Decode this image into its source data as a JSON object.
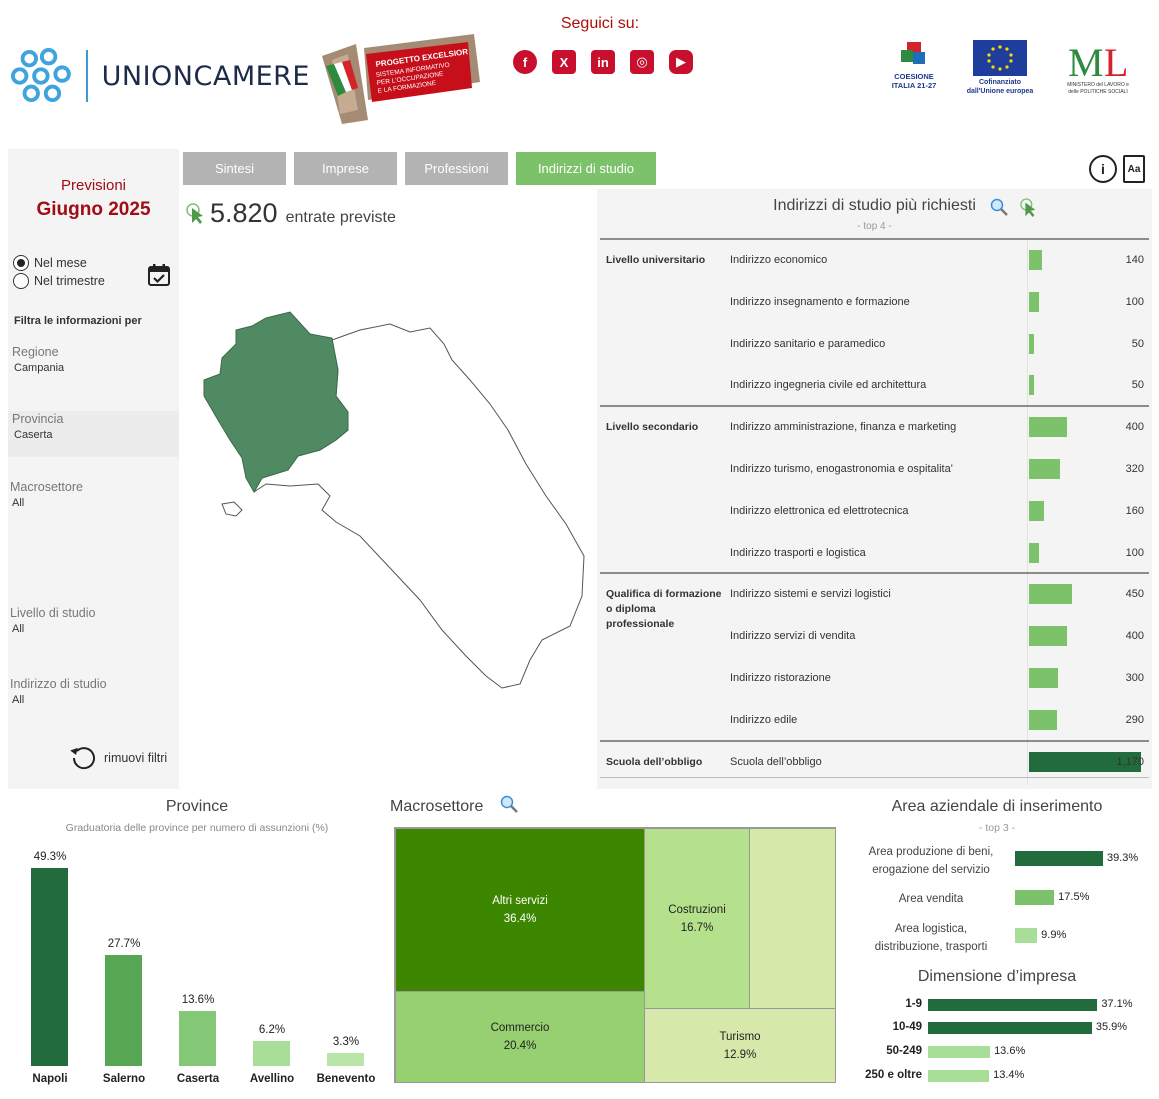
{
  "header": {
    "brand": "UNIONCAMERE",
    "excelsior": {
      "title": "PROGETTO EXCELSIOR",
      "line1": "SISTEMA INFORMATIVO",
      "line2": "PER L'OCCUPAZIONE",
      "line3": "E LA FORMAZIONE"
    },
    "social_title": "Seguici su:",
    "social": [
      {
        "icon": "facebook-icon",
        "glyph": "f"
      },
      {
        "icon": "x-icon",
        "glyph": "X"
      },
      {
        "icon": "linkedin-icon",
        "glyph": "in"
      },
      {
        "icon": "instagram-icon",
        "glyph": "◎"
      },
      {
        "icon": "youtube-icon",
        "glyph": "▶"
      }
    ],
    "partners": {
      "coesione": "COESIONE ITALIA 21-27",
      "eu": "Cofinanziato dall'Unione europea",
      "ministero": "MINISTERO del LAVORO e delle POLITICHE SOCIALI"
    }
  },
  "sidebar": {
    "prev_label": "Previsioni",
    "prev_month": "Giugno 2025",
    "radio_month": "Nel mese",
    "radio_quarter": "Nel trimestre",
    "filter_heading": "Filtra le informazioni per",
    "filters": [
      {
        "label": "Regione",
        "value": "Campania"
      },
      {
        "label": "Provincia",
        "value": "Caserta"
      },
      {
        "label": "Macrosettore",
        "value": "All"
      },
      {
        "label": "Livello di studio",
        "value": "All"
      },
      {
        "label": "Indirizzo di studio",
        "value": "All"
      }
    ],
    "reset_label": "rimuovi filtri"
  },
  "tabs": [
    "Sintesi",
    "Imprese",
    "Professioni",
    "Indirizzi di studio"
  ],
  "kpi": {
    "value": "5.820",
    "label": "entrate previste"
  },
  "study": {
    "title": "Indirizzi di studio più richiesti",
    "subtitle": "- top 4 -",
    "groups": [
      {
        "name": "Livello universitario",
        "rows": [
          {
            "name": "Indirizzo economico",
            "value": 140,
            "label": "140"
          },
          {
            "name": "Indirizzo insegnamento e formazione",
            "value": 100,
            "label": "100"
          },
          {
            "name": "Indirizzo sanitario e paramedico",
            "value": 50,
            "label": "50"
          },
          {
            "name": "Indirizzo ingegneria civile ed architettura",
            "value": 50,
            "label": "50"
          }
        ]
      },
      {
        "name": "Livello secondario",
        "rows": [
          {
            "name": "Indirizzo amministrazione, finanza e marketing",
            "value": 400,
            "label": "400"
          },
          {
            "name": "Indirizzo turismo, enogastronomia e ospitalita'",
            "value": 320,
            "label": "320"
          },
          {
            "name": "Indirizzo elettronica ed elettrotecnica",
            "value": 160,
            "label": "160"
          },
          {
            "name": "Indirizzo trasporti e logistica",
            "value": 100,
            "label": "100"
          }
        ]
      },
      {
        "name": "Qualifica di formazione o diploma professionale",
        "rows": [
          {
            "name": "Indirizzo sistemi e servizi logistici",
            "value": 450,
            "label": "450"
          },
          {
            "name": "Indirizzo servizi di vendita",
            "value": 400,
            "label": "400"
          },
          {
            "name": "Indirizzo ristorazione",
            "value": 300,
            "label": "300"
          },
          {
            "name": "Indirizzo edile",
            "value": 290,
            "label": "290"
          }
        ]
      },
      {
        "name": "Scuola dell’obbligo",
        "rows": [
          {
            "name": "Scuola dell’obbligo",
            "value": 1170,
            "label": "1,170"
          }
        ]
      }
    ]
  },
  "province": {
    "title": "Province",
    "subtitle": "Graduatoria delle province per numero di assunzioni (%)"
  },
  "macro": {
    "title": "Macrosettore",
    "cells": [
      {
        "name": "Altri servizi",
        "value": "36.4%"
      },
      {
        "name": "Costruzioni",
        "value": "16.7%"
      },
      {
        "name": "Commercio",
        "value": "20.4%"
      },
      {
        "name": "Turismo",
        "value": "12.9%"
      }
    ]
  },
  "area": {
    "title": "Area aziendale di inserimento",
    "subtitle": "- top 3 -",
    "rows": [
      {
        "line1": "Area produzione di beni,",
        "line2": "erogazione del servizio",
        "value": 39.3,
        "label": "39.3%"
      },
      {
        "line1": "Area vendita",
        "line2": "",
        "value": 17.5,
        "label": "17.5%"
      },
      {
        "line1": "Area logistica,",
        "line2": "distribuzione, trasporti",
        "value": 9.9,
        "label": "9.9%"
      }
    ]
  },
  "dimensione": {
    "title": "Dimensione d’impresa"
  },
  "chart_data": [
    {
      "type": "bar",
      "title": "Province",
      "subtitle": "Graduatoria delle province per numero di assunzioni (%)",
      "categories": [
        "Napoli",
        "Salerno",
        "Caserta",
        "Avellino",
        "Benevento"
      ],
      "values": [
        49.3,
        27.7,
        13.6,
        6.2,
        3.3
      ],
      "labels": [
        "49.3%",
        "27.7%",
        "13.6%",
        "6.2%",
        "3.3%"
      ],
      "colors": [
        "#226b3d",
        "#57a654",
        "#84c877",
        "#a9de98",
        "#b9e6a8"
      ]
    },
    {
      "type": "bar",
      "title": "Dimensione d’impresa",
      "categories": [
        "1-9",
        "10-49",
        "50-249",
        "250 e oltre"
      ],
      "values": [
        37.1,
        35.9,
        13.6,
        13.4
      ],
      "labels": [
        "37.1%",
        "35.9%",
        "13.6%",
        "13.4%"
      ],
      "colors": [
        "#226b3d",
        "#226b3d",
        "#a9de98",
        "#a9de98"
      ]
    }
  ],
  "colors": {
    "accent_red": "#a00d14",
    "tab_active": "#7cc26a",
    "tab_inactive": "#b3b3b3",
    "bar_green": "#7cc26a",
    "bar_dark": "#226b3d",
    "map_fill": "#4f8a62"
  }
}
